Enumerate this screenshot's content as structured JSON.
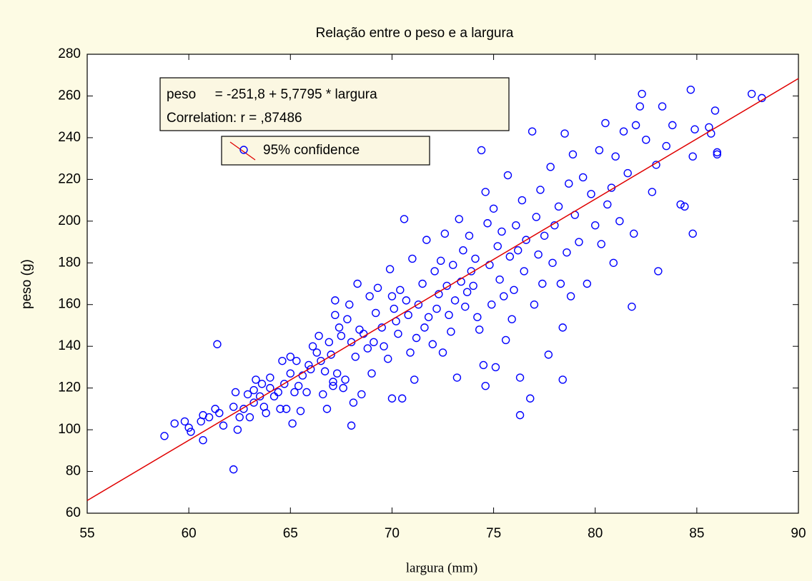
{
  "chart_data": {
    "type": "scatter",
    "title": "Relação entre o peso e a largura",
    "xlabel": "largura (mm)",
    "ylabel": "peso (g)",
    "annotation": [
      "peso     = -251,8 + 5,7795 * largura",
      "Correlation: r = ,87486"
    ],
    "legend": "95% confidence",
    "fit": {
      "intercept": -251.8,
      "slope": 5.7795,
      "color": "#e00000"
    },
    "color": "#0000ff",
    "xlim": [
      55,
      90
    ],
    "xticks": [
      55,
      60,
      65,
      70,
      75,
      80,
      85,
      90
    ],
    "ylim": [
      60,
      280
    ],
    "yticks": [
      60,
      80,
      100,
      120,
      140,
      160,
      180,
      200,
      220,
      240,
      260,
      280
    ],
    "x": [
      58.8,
      59.3,
      59.8,
      60,
      60.1,
      60.6,
      60.7,
      60.7,
      61,
      61.3,
      61.4,
      61.5,
      61.7,
      62.2,
      62.2,
      62.3,
      62.4,
      62.5,
      62.7,
      62.9,
      63,
      63.2,
      63.2,
      63.3,
      63.5,
      63.6,
      63.7,
      63.8,
      64,
      64,
      64.2,
      64.4,
      64.5,
      64.6,
      64.7,
      64.8,
      65,
      65,
      65.1,
      65.2,
      65.3,
      65.4,
      65.5,
      65.6,
      65.8,
      65.9,
      66,
      66.1,
      66.3,
      66.4,
      66.5,
      66.6,
      66.7,
      66.8,
      66.9,
      67,
      67.1,
      67.1,
      67.2,
      67.2,
      67.3,
      67.4,
      67.5,
      67.6,
      67.7,
      67.8,
      67.9,
      68,
      68,
      68.1,
      68.2,
      68.3,
      68.4,
      68.5,
      68.6,
      68.8,
      68.9,
      69,
      69.1,
      69.2,
      69.3,
      69.5,
      69.6,
      69.8,
      69.9,
      70,
      70,
      70.1,
      70.2,
      70.3,
      70.4,
      70.5,
      70.6,
      70.7,
      70.8,
      70.9,
      71,
      71.1,
      71.2,
      71.3,
      71.5,
      71.6,
      71.7,
      71.8,
      72,
      72.1,
      72.2,
      72.3,
      72.4,
      72.5,
      72.6,
      72.7,
      72.8,
      72.9,
      73,
      73.1,
      73.2,
      73.3,
      73.4,
      73.5,
      73.6,
      73.7,
      73.8,
      73.9,
      74,
      74.1,
      74.2,
      74.3,
      74.4,
      74.5,
      74.6,
      74.6,
      74.7,
      74.8,
      74.9,
      75,
      75.1,
      75.2,
      75.3,
      75.4,
      75.5,
      75.6,
      75.7,
      75.8,
      75.9,
      76,
      76.1,
      76.2,
      76.3,
      76.3,
      76.4,
      76.5,
      76.6,
      76.8,
      76.9,
      77,
      77.1,
      77.2,
      77.3,
      77.4,
      77.5,
      77.7,
      77.8,
      77.9,
      78,
      78.2,
      78.3,
      78.4,
      78.4,
      78.5,
      78.6,
      78.7,
      78.8,
      78.9,
      79,
      79.2,
      79.4,
      79.6,
      79.8,
      80,
      80.2,
      80.3,
      80.5,
      80.6,
      80.8,
      80.9,
      81,
      81.2,
      81.4,
      81.6,
      81.8,
      81.9,
      82,
      82.2,
      82.3,
      82.5,
      82.8,
      83,
      83.1,
      83.3,
      83.5,
      83.8,
      84.2,
      84.4,
      84.7,
      84.8,
      84.8,
      84.9,
      85.6,
      85.7,
      86,
      86,
      85.9,
      87.7,
      88.2
    ],
    "values": [
      97,
      103,
      104,
      101,
      99,
      104,
      107,
      95,
      106,
      110,
      141,
      108,
      102,
      81,
      111,
      118,
      100,
      106,
      110,
      117,
      106,
      119,
      113,
      124,
      116,
      122,
      111,
      108,
      120,
      125,
      116,
      118,
      110,
      133,
      122,
      110,
      135,
      127,
      103,
      118,
      133,
      121,
      109,
      126,
      118,
      131,
      129,
      140,
      137,
      145,
      133,
      117,
      128,
      110,
      142,
      136,
      123,
      121,
      155,
      162,
      127,
      149,
      145,
      120,
      124,
      153,
      160,
      102,
      142,
      113,
      135,
      170,
      148,
      117,
      146,
      139,
      164,
      127,
      142,
      156,
      168,
      149,
      140,
      134,
      177,
      115,
      164,
      158,
      152,
      146,
      167,
      115,
      201,
      162,
      155,
      137,
      182,
      124,
      144,
      160,
      170,
      149,
      191,
      154,
      141,
      176,
      158,
      165,
      181,
      137,
      194,
      169,
      155,
      147,
      179,
      162,
      125,
      201,
      171,
      186,
      159,
      166,
      193,
      176,
      169,
      182,
      154,
      148,
      234,
      131,
      121,
      214,
      199,
      179,
      160,
      206,
      130,
      188,
      172,
      195,
      164,
      143,
      222,
      183,
      153,
      167,
      198,
      186,
      125,
      107,
      210,
      176,
      191,
      115,
      243,
      160,
      202,
      184,
      215,
      170,
      193,
      136,
      226,
      180,
      198,
      207,
      170,
      124,
      149,
      242,
      185,
      218,
      164,
      232,
      203,
      190,
      221,
      170,
      213,
      198,
      234,
      189,
      247,
      208,
      216,
      180,
      231,
      200,
      243,
      223,
      159,
      194,
      246,
      255,
      261,
      239,
      214,
      227,
      176,
      255,
      236,
      246,
      208,
      207,
      263,
      231,
      194,
      244,
      245,
      242,
      233,
      232,
      253,
      261,
      259
    ]
  }
}
